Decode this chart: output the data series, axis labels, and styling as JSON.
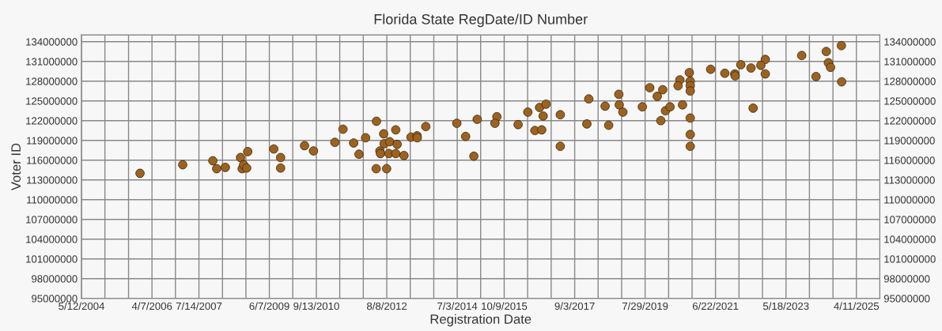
{
  "chart_data": {
    "type": "scatter",
    "title": "Florida State RegDate/ID Number",
    "xlabel": "Registration Date",
    "ylabel": "Voter ID",
    "x": [
      "2005-12-10",
      "2007-02-04",
      "2007-11-28",
      "2008-08-27",
      "2008-11-06",
      "2009-07-21",
      "2010-05-20",
      "2011-03-15",
      "2012-01-12",
      "2012-07-08",
      "2012-11-04",
      "2013-08-27",
      "2014-06-29",
      "2015-01-16",
      "2015-07-29",
      "2016-05-29",
      "2016-09-22",
      "2016-11-24",
      "2018-01-20",
      "2018-11-12",
      "2019-09-13",
      "2020-07-06",
      "2020-10-07",
      "2021-05-05",
      "2022-02-27",
      "2022-10-26",
      "2023-10-20",
      "2024-06-18",
      "2024-11-14",
      "2008-01-05",
      "2008-03-30",
      "2008-09-12",
      "2008-09-26",
      "2008-10-26",
      "2009-09-26",
      "2009-09-26",
      "2010-08-16",
      "2011-06-03",
      "2011-09-16",
      "2011-11-08",
      "2012-04-28",
      "2012-04-25",
      "2012-06-01",
      "2012-06-06",
      "2012-07-13",
      "2012-08-06",
      "2012-08-29",
      "2012-09-05",
      "2012-11-04",
      "2012-11-18",
      "2013-01-24",
      "2013-04-03",
      "2013-06-02",
      "2013-06-04",
      "2014-09-24",
      "2014-12-14",
      "2015-07-10",
      "2016-02-23",
      "2016-08-07",
      "2016-10-13",
      "2016-10-27",
      "2017-04-14",
      "2017-04-14",
      "2018-01-01",
      "2018-06-30",
      "2018-08-04",
      "2018-11-16",
      "2018-12-22",
      "2019-07-02",
      "2019-11-26",
      "2019-12-31",
      "2020-01-19",
      "2020-02-15",
      "2020-03-31",
      "2020-06-18",
      "2020-08-01",
      "2020-10-16",
      "2020-10-16",
      "2020-10-16",
      "2020-10-16",
      "2020-10-16",
      "2020-10-16",
      "2021-09-22",
      "2021-12-29",
      "2022-01-02",
      "2022-06-07",
      "2022-06-28",
      "2022-09-12",
      "2022-10-26",
      "2024-03-09",
      "2024-07-09",
      "2024-07-30",
      "2024-11-17"
    ],
    "series": [
      {
        "color": "#9c6320",
        "values": [
          114000000,
          115300000,
          115900000,
          116400000,
          117300000,
          117700000,
          118200000,
          118700000,
          119400000,
          120000000,
          120600000,
          121100000,
          121600000,
          122200000,
          122600000,
          123300000,
          124000000,
          124500000,
          125300000,
          126000000,
          127000000,
          128200000,
          129300000,
          129800000,
          130500000,
          131300000,
          131900000,
          132500000,
          133400000,
          114700000,
          114900000,
          114700000,
          115300000,
          114800000,
          116400000,
          114800000,
          117400000,
          120700000,
          118600000,
          116900000,
          121900000,
          114700000,
          117400000,
          117000000,
          118500000,
          114700000,
          117000000,
          118800000,
          117000000,
          118400000,
          116700000,
          119500000,
          119700000,
          119400000,
          119600000,
          116600000,
          121600000,
          121400000,
          120500000,
          120600000,
          122700000,
          122900000,
          118100000,
          121500000,
          124200000,
          121300000,
          124400000,
          123300000,
          124100000,
          125700000,
          122000000,
          126700000,
          123500000,
          124100000,
          127300000,
          124400000,
          128000000,
          127300000,
          126500000,
          122400000,
          119900000,
          118100000,
          129200000,
          129100000,
          128800000,
          130000000,
          123900000,
          130400000,
          129100000,
          128700000,
          130800000,
          130100000,
          127900000
        ]
      }
    ],
    "marker": "circle",
    "grid": true,
    "xlim": [
      "2004-05-12",
      "2025-11-28"
    ],
    "xticks": [
      {
        "value": "2004-05-12",
        "label": "5/12/2004"
      },
      {
        "value": "2004-12-29",
        "label": null
      },
      {
        "value": "2005-08-19",
        "label": null
      },
      {
        "value": "2006-04-07",
        "label": "4/7/2006"
      },
      {
        "value": "2006-11-24",
        "label": null
      },
      {
        "value": "2007-07-14",
        "label": "7/14/2007"
      },
      {
        "value": "2008-03-02",
        "label": null
      },
      {
        "value": "2008-10-19",
        "label": null
      },
      {
        "value": "2009-06-07",
        "label": "6/7/2009"
      },
      {
        "value": "2010-01-24",
        "label": null
      },
      {
        "value": "2010-09-13",
        "label": "9/13/2010"
      },
      {
        "value": "2011-05-02",
        "label": null
      },
      {
        "value": "2011-12-20",
        "label": null
      },
      {
        "value": "2012-08-08",
        "label": "8/8/2012"
      },
      {
        "value": "2013-03-27",
        "label": null
      },
      {
        "value": "2013-11-14",
        "label": null
      },
      {
        "value": "2014-07-03",
        "label": "7/3/2014"
      },
      {
        "value": "2015-02-19",
        "label": null
      },
      {
        "value": "2015-10-09",
        "label": "10/9/2015"
      },
      {
        "value": "2016-05-27",
        "label": null
      },
      {
        "value": "2017-01-14",
        "label": null
      },
      {
        "value": "2017-09-03",
        "label": "9/3/2017"
      },
      {
        "value": "2018-04-22",
        "label": null
      },
      {
        "value": "2018-12-10",
        "label": null
      },
      {
        "value": "2019-07-29",
        "label": "7/29/2019"
      },
      {
        "value": "2020-03-17",
        "label": null
      },
      {
        "value": "2020-11-03",
        "label": null
      },
      {
        "value": "2021-06-22",
        "label": "6/22/2021"
      },
      {
        "value": "2022-02-09",
        "label": null
      },
      {
        "value": "2022-09-28",
        "label": null
      },
      {
        "value": "2023-05-18",
        "label": "5/18/2023"
      },
      {
        "value": "2024-01-04",
        "label": null
      },
      {
        "value": "2024-08-23",
        "label": null
      },
      {
        "value": "2025-04-11",
        "label": "4/11/2025"
      }
    ],
    "ylim": [
      95000000,
      135000000
    ],
    "yticks": [
      95000000,
      98000000,
      101000000,
      104000000,
      107000000,
      110000000,
      113000000,
      116000000,
      119000000,
      122000000,
      125000000,
      128000000,
      131000000,
      134000000
    ],
    "y2lim": [
      95000000,
      135000000
    ],
    "y2ticks": [
      95000000,
      98000000,
      101000000,
      104000000,
      107000000,
      110000000,
      113000000,
      116000000,
      119000000,
      122000000,
      125000000,
      128000000,
      131000000,
      134000000
    ]
  }
}
